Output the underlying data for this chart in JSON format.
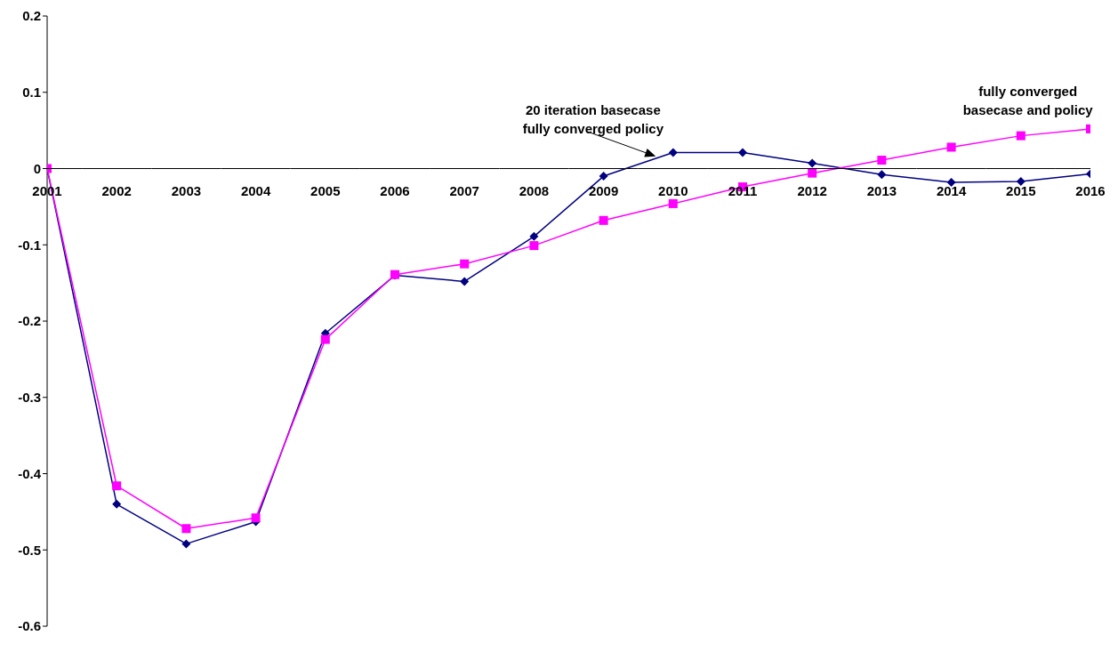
{
  "chart_data": {
    "type": "line",
    "categories": [
      "2001",
      "2002",
      "2003",
      "2004",
      "2005",
      "2006",
      "2007",
      "2008",
      "2009",
      "2010",
      "2011",
      "2012",
      "2013",
      "2014",
      "2015",
      "2016"
    ],
    "series": [
      {
        "name": "20 iteration basecase\nfully converged policy",
        "color": "#000080",
        "marker": "diamond",
        "values": [
          0,
          -0.44,
          -0.492,
          -0.463,
          -0.216,
          -0.14,
          -0.148,
          -0.089,
          -0.01,
          0.021,
          0.021,
          0.007,
          -0.008,
          -0.018,
          -0.017,
          -0.007
        ]
      },
      {
        "name": "fully converged\nbasecase and policy",
        "color": "#ff00ff",
        "marker": "square",
        "values": [
          0,
          -0.416,
          -0.472,
          -0.458,
          -0.224,
          -0.139,
          -0.125,
          -0.101,
          -0.068,
          -0.046,
          -0.024,
          -0.006,
          0.011,
          0.028,
          0.043,
          0.052
        ]
      }
    ],
    "ylim": [
      -0.6,
      0.2
    ],
    "yticks": [
      -0.6,
      -0.5,
      -0.4,
      -0.3,
      -0.2,
      -0.1,
      0,
      0.1,
      0.2
    ],
    "grid": false
  }
}
